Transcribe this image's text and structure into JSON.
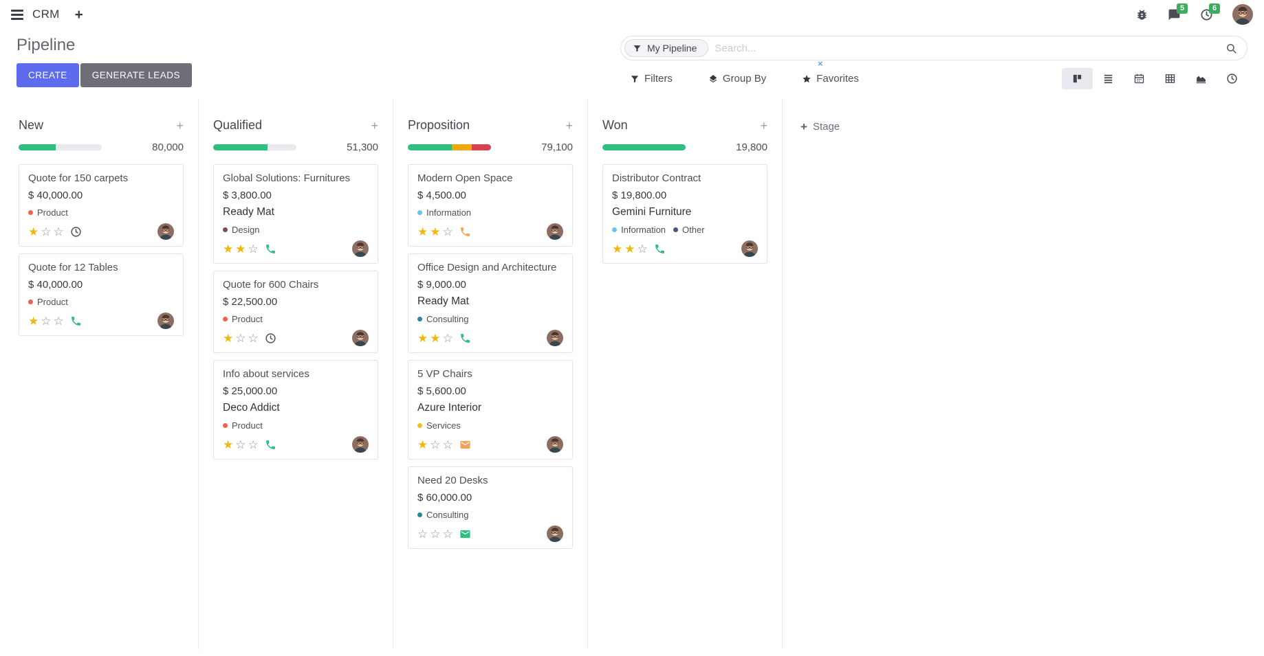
{
  "navbar": {
    "app_name": "CRM",
    "add_label": "+",
    "messages_badge": "5",
    "activities_badge": "6"
  },
  "control_panel": {
    "title": "Pipeline",
    "create_label": "CREATE",
    "generate_leads_label": "GENERATE LEADS",
    "search": {
      "facet_label": "My Pipeline",
      "facet_remove": "×",
      "placeholder": "Search..."
    },
    "filters_label": "Filters",
    "group_by_label": "Group By",
    "favorites_label": "Favorites",
    "view_switcher_icons": [
      "kanban",
      "list",
      "calendar",
      "pivot",
      "graph",
      "activity"
    ]
  },
  "kanban": {
    "stage_add_plus": "+",
    "stage_add_label": "Stage",
    "column_add_label": "+",
    "colors": {
      "progress_green": "#2ebe80",
      "progress_orange": "#f0a90d",
      "progress_red": "#d9414e",
      "star_filled": "#efb810",
      "badge_green": "#3aad5e",
      "create_button": "#5d6cee",
      "generate_button": "#6f6d78"
    },
    "columns": [
      {
        "name": "New",
        "amount": "80,000",
        "progress": [
          {
            "color": "#2ebe80",
            "pct": 45
          }
        ],
        "cards": [
          {
            "title": "Quote for 150 carpets",
            "amount": "$ 40,000.00",
            "partner": null,
            "tags": [
              {
                "label": "Product",
                "color": "#f06050"
              }
            ],
            "stars": 1,
            "activity": {
              "icon": "clock",
              "color": "#4c5157"
            }
          },
          {
            "title": "Quote for 12 Tables",
            "amount": "$ 40,000.00",
            "partner": null,
            "tags": [
              {
                "label": "Product",
                "color": "#f06050"
              }
            ],
            "stars": 1,
            "activity": {
              "icon": "phone",
              "color": "#2ebe80"
            }
          }
        ]
      },
      {
        "name": "Qualified",
        "amount": "51,300",
        "progress": [
          {
            "color": "#2ebe80",
            "pct": 65
          }
        ],
        "cards": [
          {
            "title": "Global Solutions: Furnitures",
            "amount": "$ 3,800.00",
            "partner": "Ready Mat",
            "tags": [
              {
                "label": "Design",
                "color": "#814968"
              }
            ],
            "stars": 2,
            "activity": {
              "icon": "phone",
              "color": "#2ebe80"
            }
          },
          {
            "title": "Quote for 600 Chairs",
            "amount": "$ 22,500.00",
            "partner": null,
            "tags": [
              {
                "label": "Product",
                "color": "#f06050"
              }
            ],
            "stars": 1,
            "activity": {
              "icon": "clock",
              "color": "#4c5157"
            }
          },
          {
            "title": "Info about services",
            "amount": "$ 25,000.00",
            "partner": "Deco Addict",
            "tags": [
              {
                "label": "Product",
                "color": "#f06050"
              }
            ],
            "stars": 1,
            "activity": {
              "icon": "phone",
              "color": "#2ebe80"
            }
          }
        ]
      },
      {
        "name": "Proposition",
        "amount": "79,100",
        "progress": [
          {
            "color": "#2ebe80",
            "pct": 53
          },
          {
            "color": "#f0a90d",
            "pct": 24
          },
          {
            "color": "#d9414e",
            "pct": 23
          }
        ],
        "cards": [
          {
            "title": "Modern Open Space",
            "amount": "$ 4,500.00",
            "partner": null,
            "tags": [
              {
                "label": "Information",
                "color": "#6cc1ed"
              }
            ],
            "stars": 2,
            "activity": {
              "icon": "phone",
              "color": "#f0a35a"
            }
          },
          {
            "title": "Office Design and Architecture",
            "amount": "$ 9,000.00",
            "partner": "Ready Mat",
            "tags": [
              {
                "label": "Consulting",
                "color": "#2c8397"
              }
            ],
            "stars": 2,
            "activity": {
              "icon": "phone",
              "color": "#2ebe80"
            }
          },
          {
            "title": "5 VP Chairs",
            "amount": "$ 5,600.00",
            "partner": "Azure Interior",
            "tags": [
              {
                "label": "Services",
                "color": "#efc11c"
              }
            ],
            "stars": 1,
            "activity": {
              "icon": "envelope",
              "color": "#f0a35a"
            }
          },
          {
            "title": "Need 20 Desks",
            "amount": "$ 60,000.00",
            "partner": null,
            "tags": [
              {
                "label": "Consulting",
                "color": "#2c8397"
              }
            ],
            "stars": 0,
            "activity": {
              "icon": "envelope",
              "color": "#2ebe80"
            }
          }
        ]
      },
      {
        "name": "Won",
        "amount": "19,800",
        "progress": [
          {
            "color": "#2ebe80",
            "pct": 100
          }
        ],
        "cards": [
          {
            "title": "Distributor Contract",
            "amount": "$ 19,800.00",
            "partner": "Gemini Furniture",
            "tags": [
              {
                "label": "Information",
                "color": "#6cc1ed"
              },
              {
                "label": "Other",
                "color": "#475577"
              }
            ],
            "stars": 2,
            "activity": {
              "icon": "phone",
              "color": "#2ebe80"
            }
          }
        ]
      }
    ]
  }
}
